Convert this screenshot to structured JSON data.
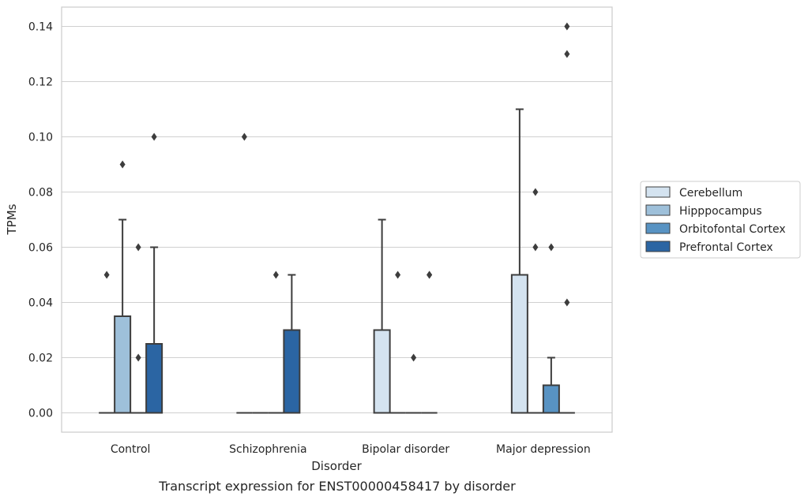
{
  "chart_data": {
    "type": "box",
    "caption": "Transcript expression for ENST00000458417 by disorder",
    "xlabel": "Disorder",
    "ylabel": "TPMs",
    "ylim": [
      -0.007,
      0.147
    ],
    "yticks": [
      0.0,
      0.02,
      0.04,
      0.06,
      0.08,
      0.1,
      0.12,
      0.14
    ],
    "ytick_labels": [
      "0.00",
      "0.02",
      "0.04",
      "0.06",
      "0.08",
      "0.10",
      "0.12",
      "0.14"
    ],
    "grid": "horizontal",
    "legend_position": "right",
    "categories": [
      "Control",
      "Schizophrenia",
      "Bipolar disorder",
      "Major depression"
    ],
    "series": [
      {
        "name": "Cerebellum",
        "color": "#d4e3f0",
        "boxes": [
          {
            "q1": 0,
            "median": 0,
            "q3": 0,
            "whisker_low": 0,
            "whisker_high": 0,
            "outliers": [
              0.05
            ]
          },
          {
            "q1": 0,
            "median": 0,
            "q3": 0,
            "whisker_low": 0,
            "whisker_high": 0,
            "outliers": [
              0.1
            ]
          },
          {
            "q1": 0,
            "median": 0,
            "q3": 0.03,
            "whisker_low": 0,
            "whisker_high": 0.07,
            "outliers": []
          },
          {
            "q1": 0,
            "median": 0,
            "q3": 0.05,
            "whisker_low": 0,
            "whisker_high": 0.11,
            "outliers": []
          }
        ]
      },
      {
        "name": "Hipppocampus",
        "color": "#9ec0da",
        "boxes": [
          {
            "q1": 0,
            "median": 0,
            "q3": 0.035,
            "whisker_low": 0,
            "whisker_high": 0.07,
            "outliers": [
              0.09
            ]
          },
          {
            "q1": 0,
            "median": 0,
            "q3": 0,
            "whisker_low": 0,
            "whisker_high": 0,
            "outliers": []
          },
          {
            "q1": 0,
            "median": 0,
            "q3": 0,
            "whisker_low": 0,
            "whisker_high": 0,
            "outliers": [
              0.05
            ]
          },
          {
            "q1": 0,
            "median": 0,
            "q3": 0,
            "whisker_low": 0,
            "whisker_high": 0,
            "outliers": [
              0.06,
              0.08
            ]
          }
        ]
      },
      {
        "name": "Orbitofontal Cortex",
        "color": "#5893c3",
        "boxes": [
          {
            "q1": 0,
            "median": 0,
            "q3": 0,
            "whisker_low": 0,
            "whisker_high": 0,
            "outliers": [
              0.02,
              0.06
            ]
          },
          {
            "q1": 0,
            "median": 0,
            "q3": 0,
            "whisker_low": 0,
            "whisker_high": 0,
            "outliers": [
              0.05
            ]
          },
          {
            "q1": 0,
            "median": 0,
            "q3": 0,
            "whisker_low": 0,
            "whisker_high": 0,
            "outliers": [
              0.02
            ]
          },
          {
            "q1": 0,
            "median": 0,
            "q3": 0.01,
            "whisker_low": 0,
            "whisker_high": 0.02,
            "outliers": [
              0.06
            ]
          }
        ]
      },
      {
        "name": "Prefrontal Cortex",
        "color": "#2b65a3",
        "boxes": [
          {
            "q1": 0,
            "median": 0,
            "q3": 0.025,
            "whisker_low": 0,
            "whisker_high": 0.06,
            "outliers": [
              0.1
            ]
          },
          {
            "q1": 0,
            "median": 0,
            "q3": 0.03,
            "whisker_low": 0,
            "whisker_high": 0.05,
            "outliers": []
          },
          {
            "q1": 0,
            "median": 0,
            "q3": 0,
            "whisker_low": 0,
            "whisker_high": 0,
            "outliers": [
              0.05,
              0.05
            ]
          },
          {
            "q1": 0,
            "median": 0,
            "q3": 0,
            "whisker_low": 0,
            "whisker_high": 0,
            "outliers": [
              0.04,
              0.13,
              0.14
            ]
          }
        ]
      }
    ]
  }
}
